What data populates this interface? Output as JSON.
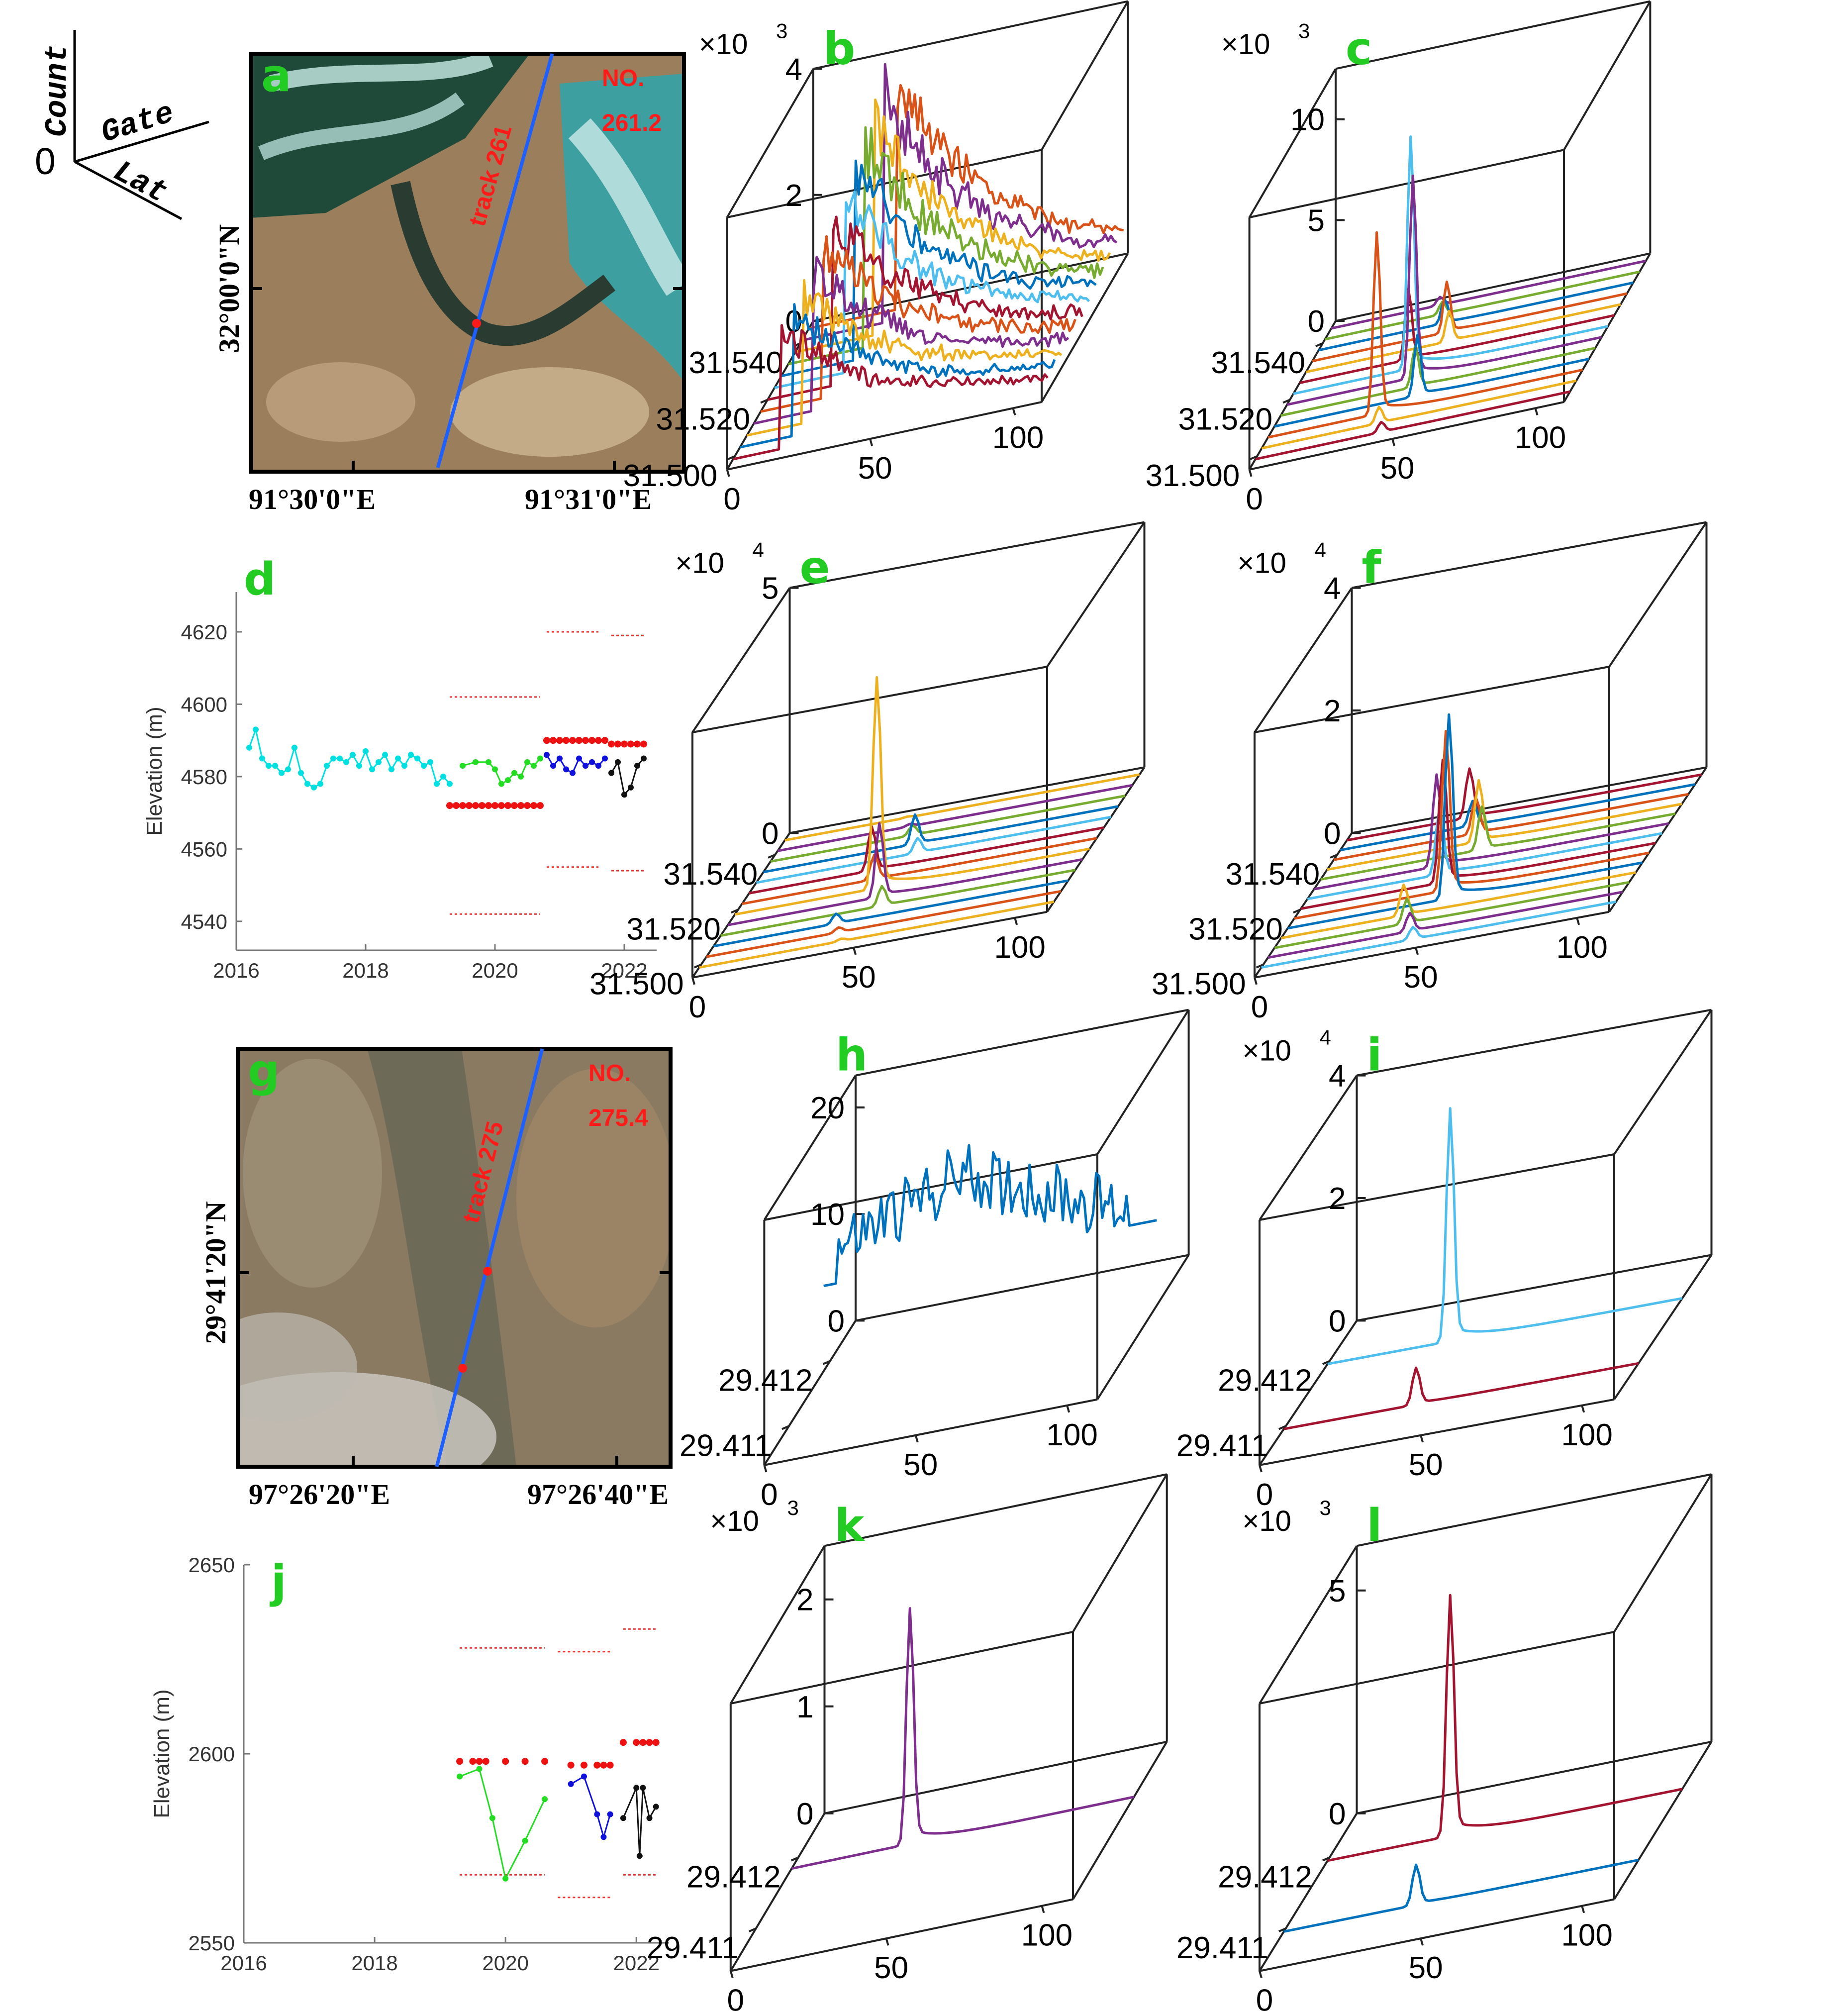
{
  "colors": {
    "panel_letter": "#22cc22",
    "track_red": "#ff1a1a",
    "track_blue": "#1e5fff"
  },
  "axes_legend": {
    "zero": "0",
    "count": "Count",
    "gate": "Gate",
    "lat": "Lat"
  },
  "maps": [
    {
      "id": "a",
      "letter": "a",
      "no_label": "NO.",
      "no_value": "261.2",
      "track_label": "track 261",
      "lat_label": "32°00'0\"N",
      "lon_labels": [
        "91°30'0\"E",
        "91°31'0\"E"
      ],
      "palette": "lake"
    },
    {
      "id": "g",
      "letter": "g",
      "no_label": "NO.",
      "no_value": "275.4",
      "track_label": "track 275",
      "lat_label": "29°41'20\"N",
      "lon_labels": [
        "97°26'20\"E",
        "97°26'40\"E"
      ],
      "palette": "land"
    }
  ],
  "chart_data": [
    {
      "panel": "b",
      "type": "line",
      "multiplier": "×10",
      "exponent": "3",
      "z_ticks": [
        "0",
        "2",
        "4"
      ],
      "lat_ticks": [
        "31.540",
        "31.520",
        "31.500"
      ],
      "gate_ticks": [
        "0",
        "50",
        "100"
      ],
      "n_series": 12,
      "zmax": 4,
      "waveform": "broad",
      "peaks": [
        3.6,
        3.5,
        3.3,
        3.2,
        3.0,
        2.8,
        2.6,
        2.4,
        2.2,
        2.0,
        1.9,
        1.8
      ],
      "series_colors": [
        "#d95319",
        "#7e2f8e",
        "#edb120",
        "#77ac30",
        "#0072bd",
        "#4dbeee",
        "#a2142f",
        "#d95319",
        "#7e2f8e",
        "#edb120",
        "#0072bd",
        "#a2142f"
      ]
    },
    {
      "panel": "c",
      "type": "line",
      "multiplier": "×10",
      "exponent": "3",
      "z_ticks": [
        "0",
        "5",
        "10"
      ],
      "lat_ticks": [
        "31.540",
        "31.520",
        "31.500"
      ],
      "gate_ticks": [
        "0",
        "50",
        "100"
      ],
      "n_series": 13,
      "zmax": 12.5,
      "waveform": "peak",
      "peaks": [
        0.4,
        0.6,
        1.2,
        2.5,
        1.5,
        3.5,
        11.5,
        10.0,
        2.0,
        3.0,
        9.0,
        0.8,
        0.5
      ],
      "series_colors": [
        "#7e2f8e",
        "#77ac30",
        "#0072bd",
        "#d95319",
        "#edb120",
        "#a2142f",
        "#4dbeee",
        "#7e2f8e",
        "#77ac30",
        "#0072bd",
        "#d95319",
        "#edb120",
        "#a2142f"
      ]
    },
    {
      "panel": "d",
      "type": "scatter",
      "ylabel": "Elevation (m)",
      "y_ticks": [
        "4540",
        "4560",
        "4580",
        "4600",
        "4620"
      ],
      "x_ticks": [
        "2016",
        "2018",
        "2020",
        "2022"
      ],
      "xlim": [
        2016,
        2022.5
      ],
      "ylim": [
        4532,
        4631
      ],
      "series": [
        {
          "color": "#00e0e0",
          "line": true,
          "x": [
            2016.2,
            2016.3,
            2016.4,
            2016.5,
            2016.6,
            2016.7,
            2016.8,
            2016.9,
            2017.0,
            2017.1,
            2017.2,
            2017.3,
            2017.4,
            2017.5,
            2017.6,
            2017.7,
            2017.8,
            2017.9,
            2018.0,
            2018.1,
            2018.2,
            2018.3,
            2018.4,
            2018.5,
            2018.6,
            2018.7,
            2018.8,
            2018.9,
            2019.0,
            2019.1,
            2019.2,
            2019.3
          ],
          "y": [
            4588,
            4593,
            4585,
            4583,
            4583,
            4581,
            4582,
            4588,
            4581,
            4578,
            4577,
            4578,
            4583,
            4585,
            4585,
            4584,
            4586,
            4583,
            4587,
            4582,
            4584,
            4586,
            4582,
            4585,
            4583,
            4586,
            4585,
            4583,
            4584,
            4578,
            4580,
            4578
          ]
        },
        {
          "color": "#22dd22",
          "line": true,
          "x": [
            2019.5,
            2019.7,
            2019.9,
            2020.0,
            2020.1,
            2020.2,
            2020.3,
            2020.4,
            2020.5,
            2020.6,
            2020.7
          ],
          "y": [
            4583,
            4584,
            4584,
            4582,
            4578,
            4579,
            4581,
            4580,
            4584,
            4583,
            4585
          ]
        },
        {
          "color": "#1010dd",
          "line": true,
          "x": [
            2020.8,
            2020.9,
            2021.0,
            2021.1,
            2021.2,
            2021.3,
            2021.4,
            2021.5,
            2021.6,
            2021.7
          ],
          "y": [
            4586,
            4583,
            4585,
            4582,
            4581,
            4585,
            4583,
            4584,
            4583,
            4585
          ]
        },
        {
          "color": "#111111",
          "line": true,
          "x": [
            2021.8,
            2021.9,
            2022.0,
            2022.1,
            2022.2,
            2022.3
          ],
          "y": [
            4581,
            4584,
            4575,
            4577,
            4583,
            4585
          ]
        },
        {
          "color": "#ee1111",
          "line": false,
          "x": [
            2019.3,
            2019.4,
            2019.5,
            2019.6,
            2019.7,
            2019.8,
            2019.9,
            2020.0,
            2020.1,
            2020.2,
            2020.3,
            2020.4,
            2020.5,
            2020.6,
            2020.7,
            2020.8,
            2020.9,
            2021.0,
            2021.1,
            2021.2,
            2021.3,
            2021.4,
            2021.5,
            2021.6,
            2021.7,
            2021.8,
            2021.9,
            2022.0,
            2022.1,
            2022.2,
            2022.3
          ],
          "y": [
            4572,
            4572,
            4572,
            4572,
            4572,
            4572,
            4572,
            4572,
            4572,
            4572,
            4572,
            4572,
            4572,
            4572,
            4572,
            4590,
            4590,
            4590,
            4590,
            4590,
            4590,
            4590,
            4590,
            4590,
            4590,
            4589,
            4589,
            4589,
            4589,
            4589,
            4589
          ]
        }
      ],
      "dashed": [
        {
          "x": [
            2019.3,
            2020.7
          ],
          "y": 4602
        },
        {
          "x": [
            2019.3,
            2020.7
          ],
          "y": 4542
        },
        {
          "x": [
            2020.8,
            2021.6
          ],
          "y": 4620
        },
        {
          "x": [
            2020.8,
            2021.6
          ],
          "y": 4555
        },
        {
          "x": [
            2021.8,
            2022.3
          ],
          "y": 4619
        },
        {
          "x": [
            2021.8,
            2022.3
          ],
          "y": 4554
        }
      ]
    },
    {
      "panel": "e",
      "type": "line",
      "multiplier": "×10",
      "exponent": "4",
      "z_ticks": [
        "0",
        "5"
      ],
      "lat_ticks": [
        "31.540",
        "31.520",
        "31.500"
      ],
      "gate_ticks": [
        "0",
        "50",
        "100"
      ],
      "n_series": 13,
      "zmax": 5,
      "waveform": "peak",
      "peaks": [
        0.02,
        0.05,
        0.2,
        0.6,
        0.3,
        0.9,
        0.5,
        4.3,
        1.5,
        0.4,
        0.2,
        0.1,
        0.05
      ],
      "series_colors": [
        "#edb120",
        "#7e2f8e",
        "#77ac30",
        "#0072bd",
        "#4dbeee",
        "#a2142f",
        "#d95319",
        "#edb120",
        "#7e2f8e",
        "#77ac30",
        "#0072bd",
        "#d95319",
        "#edb120"
      ]
    },
    {
      "panel": "f",
      "type": "line",
      "multiplier": "×10",
      "exponent": "4",
      "z_ticks": [
        "0",
        "2",
        "4"
      ],
      "lat_ticks": [
        "31.540",
        "31.520",
        "31.500"
      ],
      "gate_ticks": [
        "0",
        "50",
        "100"
      ],
      "n_series": 14,
      "zmax": 4,
      "waveform": "peak",
      "peaks": [
        0.8,
        0.4,
        0.6,
        1.0,
        0.7,
        1.5,
        1.1,
        2.0,
        2.6,
        3.0,
        0.5,
        0.4,
        0.3,
        0.2
      ],
      "series_colors": [
        "#a2142f",
        "#0072bd",
        "#d95319",
        "#edb120",
        "#77ac30",
        "#7e2f8e",
        "#4dbeee",
        "#a2142f",
        "#d95319",
        "#0072bd",
        "#edb120",
        "#77ac30",
        "#7e2f8e",
        "#4dbeee"
      ]
    },
    {
      "panel": "h",
      "type": "line",
      "multiplier": "",
      "exponent": "",
      "z_ticks": [
        "0",
        "10",
        "20"
      ],
      "lat_ticks": [
        "29.412",
        "29.411"
      ],
      "gate_ticks": [
        "0",
        "50",
        "100"
      ],
      "n_series": 1,
      "zmax": 23,
      "waveform": "noise",
      "peaks": [
        16
      ],
      "series_colors": [
        "#0072bd"
      ]
    },
    {
      "panel": "i",
      "type": "line",
      "multiplier": "×10",
      "exponent": "4",
      "z_ticks": [
        "0",
        "2",
        "4"
      ],
      "lat_ticks": [
        "29.412",
        "29.411"
      ],
      "gate_ticks": [
        "0",
        "50",
        "100"
      ],
      "n_series": 2,
      "zmax": 4,
      "waveform": "peak",
      "peaks": [
        3.8,
        0.6
      ],
      "series_colors": [
        "#4dbeee",
        "#a2142f"
      ]
    },
    {
      "panel": "j",
      "type": "scatter",
      "ylabel": "Elevation (m)",
      "y_ticks": [
        "2550",
        "2600",
        "2650"
      ],
      "x_ticks": [
        "2016",
        "2018",
        "2020",
        "2022"
      ],
      "xlim": [
        2016,
        2022.5
      ],
      "ylim": [
        2550,
        2650
      ],
      "series": [
        {
          "color": "#22dd22",
          "line": true,
          "x": [
            2019.3,
            2019.6,
            2019.8,
            2020.0,
            2020.3,
            2020.6
          ],
          "y": [
            2594,
            2596,
            2583,
            2567,
            2577,
            2588
          ]
        },
        {
          "color": "#1010dd",
          "line": true,
          "x": [
            2021.0,
            2021.2,
            2021.4,
            2021.5,
            2021.6
          ],
          "y": [
            2592,
            2594,
            2584,
            2578,
            2584
          ]
        },
        {
          "color": "#111111",
          "line": true,
          "x": [
            2021.8,
            2022.0,
            2022.05,
            2022.1,
            2022.2,
            2022.3
          ],
          "y": [
            2583,
            2591,
            2573,
            2591,
            2583,
            2586
          ]
        },
        {
          "color": "#ee1111",
          "line": false,
          "x": [
            2019.3,
            2019.5,
            2019.6,
            2019.7,
            2020.0,
            2020.3,
            2020.6,
            2021.0,
            2021.2,
            2021.4,
            2021.5,
            2021.6,
            2021.8,
            2022.0,
            2022.1,
            2022.2,
            2022.3
          ],
          "y": [
            2598,
            2598,
            2598,
            2598,
            2598,
            2598,
            2598,
            2597,
            2597,
            2597,
            2597,
            2597,
            2603,
            2603,
            2603,
            2603,
            2603
          ]
        }
      ],
      "dashed": [
        {
          "x": [
            2019.3,
            2020.6
          ],
          "y": 2628
        },
        {
          "x": [
            2019.3,
            2020.6
          ],
          "y": 2568
        },
        {
          "x": [
            2020.8,
            2021.6
          ],
          "y": 2627
        },
        {
          "x": [
            2020.8,
            2021.6
          ],
          "y": 2562
        },
        {
          "x": [
            2021.8,
            2022.3
          ],
          "y": 2633
        },
        {
          "x": [
            2021.8,
            2022.3
          ],
          "y": 2568
        }
      ]
    },
    {
      "panel": "k",
      "type": "line",
      "multiplier": "×10",
      "exponent": "3",
      "z_ticks": [
        "0",
        "1",
        "2"
      ],
      "lat_ticks": [
        "29.412",
        "29.411"
      ],
      "gate_ticks": [
        "0",
        "50",
        "100"
      ],
      "n_series": 1,
      "zmax": 2.5,
      "waveform": "peak",
      "peaks": [
        2.2
      ],
      "series_colors": [
        "#7e2f8e"
      ]
    },
    {
      "panel": "l",
      "type": "line",
      "multiplier": "×10",
      "exponent": "3",
      "z_ticks": [
        "0",
        "5"
      ],
      "lat_ticks": [
        "29.412",
        "29.411"
      ],
      "gate_ticks": [
        "0",
        "50",
        "100"
      ],
      "n_series": 2,
      "zmax": 6,
      "waveform": "peak",
      "peaks": [
        5.4,
        0.9
      ],
      "series_colors": [
        "#a2142f",
        "#0072bd"
      ]
    }
  ]
}
